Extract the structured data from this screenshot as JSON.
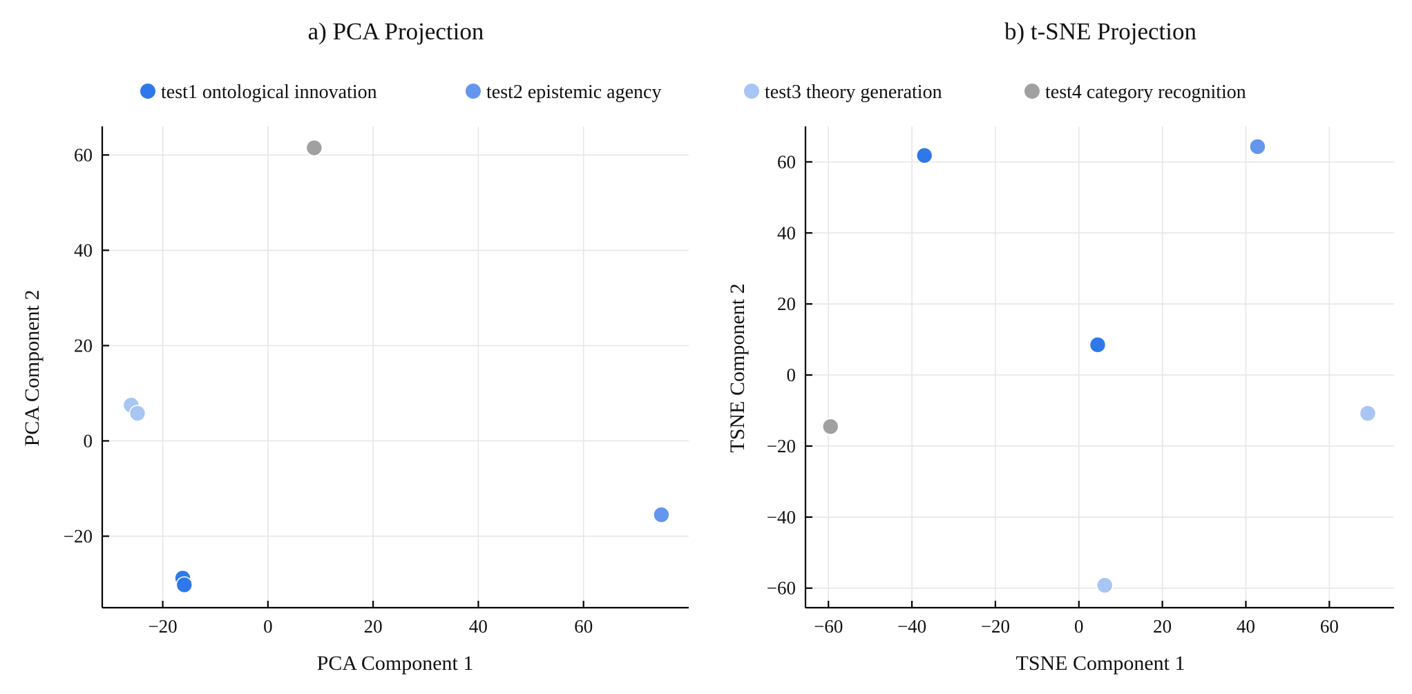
{
  "chart_data": [
    {
      "type": "scatter",
      "title": "a) PCA Projection",
      "xlabel": "PCA Component 1",
      "ylabel": "PCA Component 2",
      "xlim": [
        -31.5,
        80
      ],
      "ylim": [
        -35,
        66
      ],
      "xticks": [
        -20,
        0,
        20,
        40,
        60
      ],
      "yticks": [
        -20,
        0,
        20,
        40,
        60
      ],
      "xtick_labels": [
        "−20",
        "0",
        "20",
        "40",
        "60"
      ],
      "ytick_labels": [
        "−20",
        "0",
        "20",
        "40",
        "60"
      ],
      "grid": true,
      "series": [
        {
          "name": "test1 ontological innovation",
          "color": "#2f78ea",
          "points": [
            [
              -16.2,
              -28.8
            ],
            [
              -15.9,
              -30.2
            ]
          ]
        },
        {
          "name": "test2 epistemic agency",
          "color": "#6496ee",
          "points": [
            [
              74.8,
              -15.5
            ]
          ]
        },
        {
          "name": "test3 theory generation",
          "color": "#a8c5f4",
          "points": [
            [
              -26.0,
              7.5
            ],
            [
              -24.8,
              5.8
            ]
          ]
        },
        {
          "name": "test4 category recognition",
          "color": "#a0a0a0",
          "points": [
            [
              8.8,
              61.5
            ]
          ]
        }
      ]
    },
    {
      "type": "scatter",
      "title": "b) t-SNE Projection",
      "xlabel": "TSNE Component 1",
      "ylabel": "TSNE Component 2",
      "xlim": [
        -65.5,
        75.5
      ],
      "ylim": [
        -65.5,
        70
      ],
      "xticks": [
        -60,
        -40,
        -20,
        0,
        20,
        40,
        60
      ],
      "yticks": [
        -60,
        -40,
        -20,
        0,
        20,
        40,
        60
      ],
      "xtick_labels": [
        "−60",
        "−40",
        "−20",
        "0",
        "20",
        "40",
        "60"
      ],
      "ytick_labels": [
        "−60",
        "−40",
        "−20",
        "0",
        "20",
        "40",
        "60"
      ],
      "grid": true,
      "series": [
        {
          "name": "test1 ontological innovation",
          "color": "#2f78ea",
          "points": [
            [
              -37.0,
              61.8
            ],
            [
              4.5,
              8.5
            ]
          ]
        },
        {
          "name": "test2 epistemic agency",
          "color": "#6496ee",
          "points": [
            [
              42.8,
              64.3
            ]
          ]
        },
        {
          "name": "test3 theory generation",
          "color": "#a8c5f4",
          "points": [
            [
              69.2,
              -10.8
            ],
            [
              6.2,
              -59.2
            ]
          ]
        },
        {
          "name": "test4 category recognition",
          "color": "#a0a0a0",
          "points": [
            [
              -59.5,
              -14.5
            ]
          ]
        }
      ]
    }
  ],
  "legend": {
    "placement": "top-center",
    "items": [
      {
        "label": "test1 ontological innovation",
        "color": "#2f78ea"
      },
      {
        "label": "test2 epistemic agency",
        "color": "#6496ee"
      },
      {
        "label": "test3 theory generation",
        "color": "#a8c5f4"
      },
      {
        "label": "test4 category recognition",
        "color": "#a0a0a0"
      }
    ]
  }
}
